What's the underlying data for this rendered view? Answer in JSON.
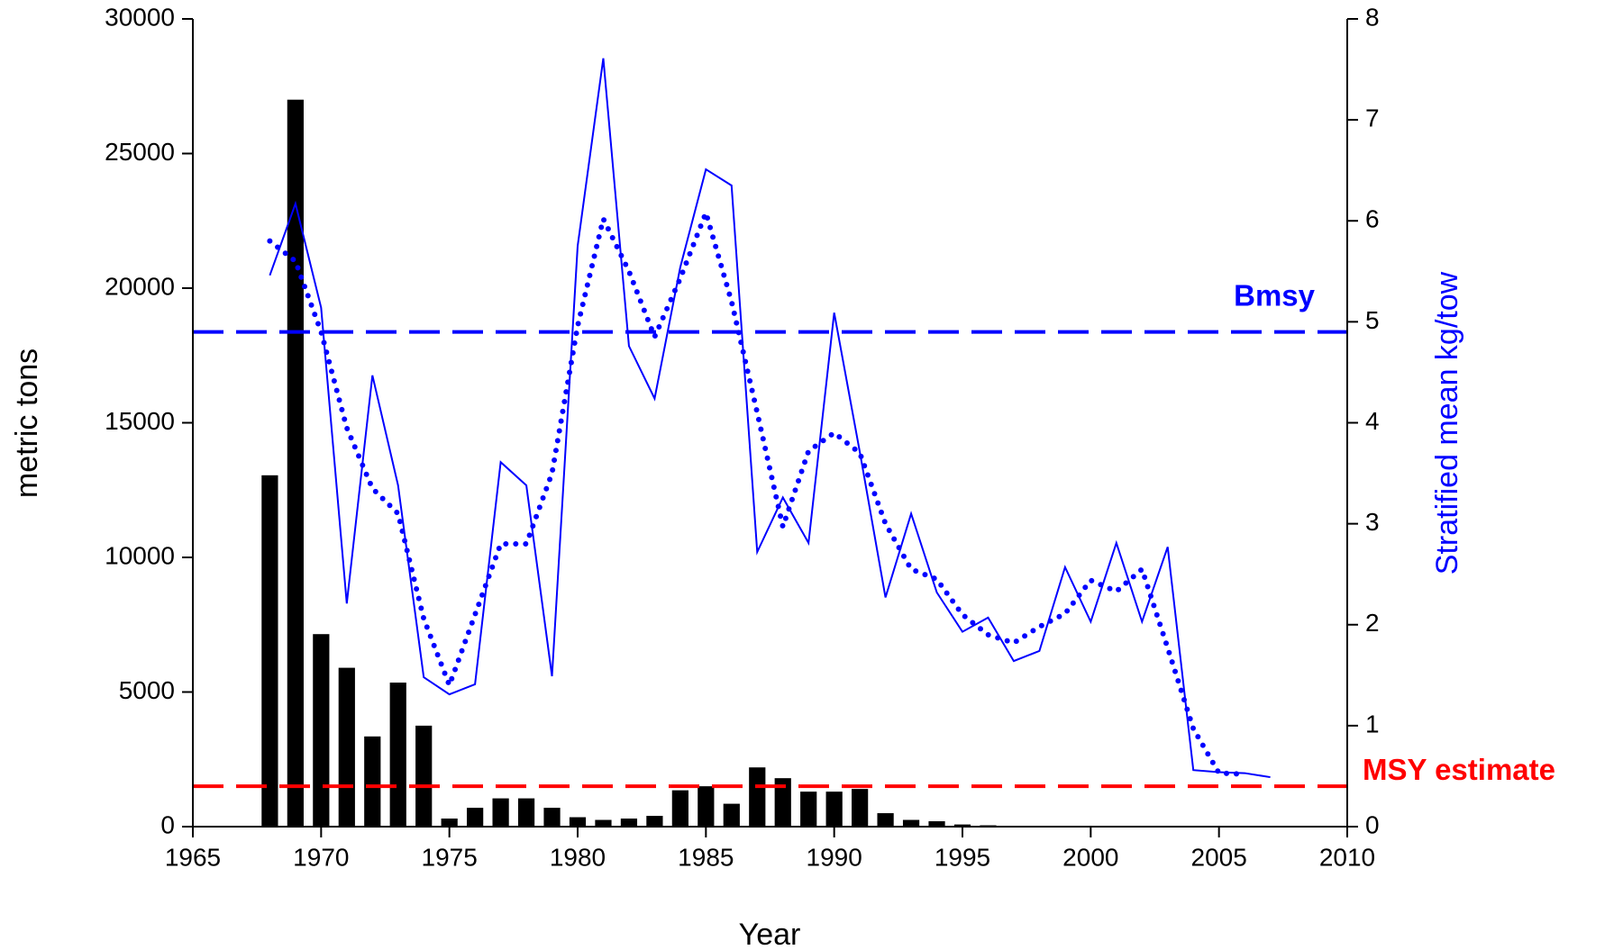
{
  "chart_data": {
    "type": "bar",
    "xlabel": "Year",
    "ylabel": "metric tons",
    "y2label": "Stratified mean kg/tow",
    "xlim": [
      1965,
      2010
    ],
    "xticks": [
      1965,
      1970,
      1975,
      1980,
      1985,
      1990,
      1995,
      2000,
      2005,
      2010
    ],
    "ylim": [
      0,
      30000
    ],
    "yticks": [
      0,
      5000,
      10000,
      15000,
      20000,
      25000,
      30000
    ],
    "y2lim": [
      0,
      8
    ],
    "y2ticks": [
      0,
      1,
      2,
      3,
      4,
      5,
      6,
      7,
      8
    ],
    "series": [
      {
        "type": "bar",
        "color": "#000000",
        "x": [
          1968,
          1969,
          1970,
          1971,
          1972,
          1973,
          1974,
          1975,
          1976,
          1977,
          1978,
          1979,
          1980,
          1981,
          1982,
          1983,
          1984,
          1985,
          1986,
          1987,
          1988,
          1989,
          1990,
          1991,
          1992,
          1993,
          1994,
          1995,
          1996
        ],
        "values": [
          13050,
          27000,
          7150,
          5900,
          3350,
          5350,
          3750,
          300,
          700,
          1050,
          1050,
          700,
          350,
          250,
          300,
          400,
          1350,
          1500,
          850,
          2200,
          1800,
          1300,
          1300,
          1400,
          500,
          250,
          200,
          80,
          50
        ]
      },
      {
        "type": "line",
        "style": "solid",
        "axis": "y2",
        "color": "#0000ff",
        "x": [
          1968,
          1969,
          1970,
          1971,
          1972,
          1973,
          1974,
          1975,
          1976,
          1977,
          1978,
          1979,
          1980,
          1981,
          1982,
          1983,
          1984,
          1985,
          1986,
          1987,
          1988,
          1989,
          1990,
          1991,
          1992,
          1993,
          1994,
          1995,
          1996,
          1997,
          1998,
          1999,
          2000,
          2001,
          2002,
          2003,
          2004,
          2005,
          2006,
          2007
        ],
        "values": [
          5.46,
          6.17,
          5.14,
          2.21,
          4.47,
          3.38,
          1.48,
          1.31,
          1.41,
          3.61,
          3.38,
          1.49,
          5.75,
          7.61,
          4.76,
          4.24,
          5.54,
          6.51,
          6.35,
          2.72,
          3.26,
          2.81,
          5.09,
          3.71,
          2.27,
          3.1,
          2.32,
          1.93,
          2.07,
          1.64,
          1.74,
          2.57,
          2.03,
          2.81,
          2.03,
          2.77,
          0.56,
          0.54,
          0.53,
          0.49
        ]
      },
      {
        "type": "line",
        "style": "dotted",
        "axis": "y2",
        "color": "#0000ff",
        "x": [
          1968,
          1969,
          1970,
          1971,
          1972,
          1973,
          1974,
          1975,
          1976,
          1977,
          1978,
          1979,
          1980,
          1981,
          1982,
          1983,
          1984,
          1985,
          1986,
          1987,
          1988,
          1989,
          1990,
          1991,
          1992,
          1993,
          1994,
          1995,
          1996,
          1997,
          1998,
          1999,
          2000,
          2001,
          2002,
          2003,
          2004,
          2005,
          2006
        ],
        "values": [
          5.8,
          5.6,
          4.9,
          3.95,
          3.35,
          3.1,
          2.06,
          1.4,
          2.1,
          2.8,
          2.8,
          3.5,
          4.96,
          6.02,
          5.5,
          4.85,
          5.43,
          6.08,
          5.2,
          4.1,
          2.97,
          3.72,
          3.9,
          3.7,
          3.0,
          2.55,
          2.45,
          2.1,
          1.9,
          1.82,
          1.98,
          2.11,
          2.44,
          2.33,
          2.55,
          1.77,
          0.97,
          0.53,
          0.52
        ]
      }
    ],
    "reference_lines": [
      {
        "label": "Bmsy",
        "value": 4.9,
        "axis": "y2",
        "color": "#0000ff"
      },
      {
        "label": "MSY estimate",
        "value": 1500,
        "axis": "y",
        "color": "#ff0000"
      }
    ]
  }
}
